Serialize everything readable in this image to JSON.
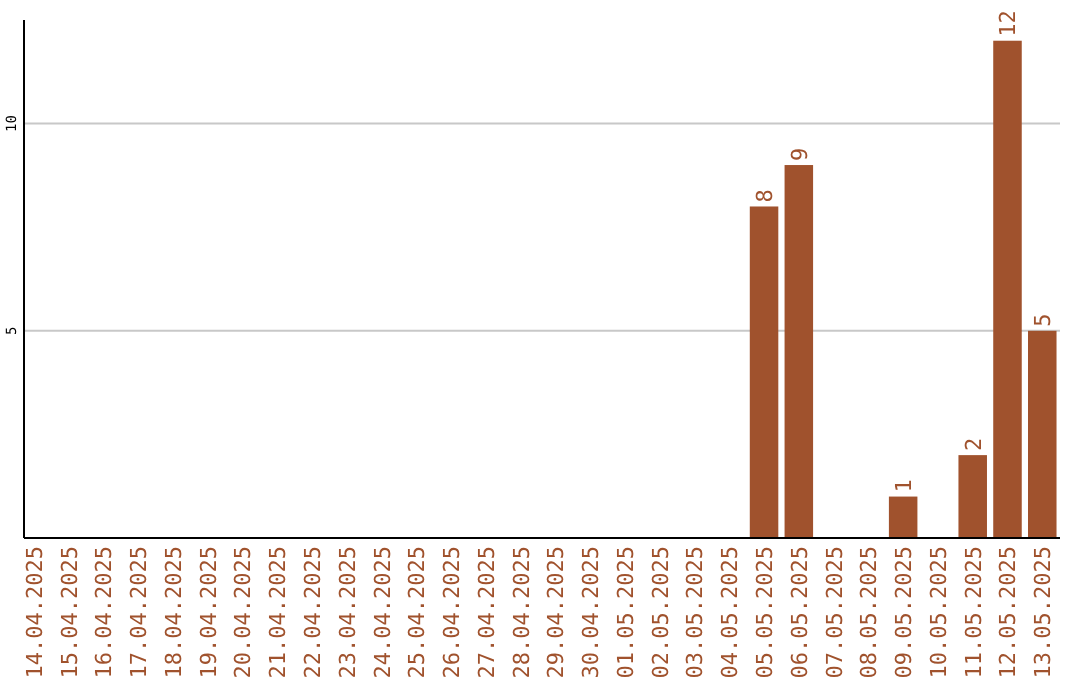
{
  "chart_data": {
    "type": "bar",
    "categories": [
      "14.04.2025",
      "15.04.2025",
      "16.04.2025",
      "17.04.2025",
      "18.04.2025",
      "19.04.2025",
      "20.04.2025",
      "21.04.2025",
      "22.04.2025",
      "23.04.2025",
      "24.04.2025",
      "25.04.2025",
      "26.04.2025",
      "27.04.2025",
      "28.04.2025",
      "29.04.2025",
      "30.04.2025",
      "01.05.2025",
      "02.05.2025",
      "03.05.2025",
      "04.05.2025",
      "05.05.2025",
      "06.05.2025",
      "07.05.2025",
      "08.05.2025",
      "09.05.2025",
      "10.05.2025",
      "11.05.2025",
      "12.05.2025",
      "13.05.2025"
    ],
    "values": [
      0,
      0,
      0,
      0,
      0,
      0,
      0,
      0,
      0,
      0,
      0,
      0,
      0,
      0,
      0,
      0,
      0,
      0,
      0,
      0,
      0,
      8,
      9,
      0,
      0,
      1,
      0,
      2,
      12,
      5
    ],
    "value_labels": [
      null,
      null,
      null,
      null,
      null,
      null,
      null,
      null,
      null,
      null,
      null,
      null,
      null,
      null,
      null,
      null,
      null,
      null,
      null,
      null,
      null,
      "8",
      "9",
      null,
      null,
      "1",
      null,
      "2",
      "12",
      "5"
    ],
    "color": "#a0522d",
    "ylim": [
      0,
      12.5
    ],
    "yticks": [
      5,
      10
    ],
    "grid": "y"
  }
}
